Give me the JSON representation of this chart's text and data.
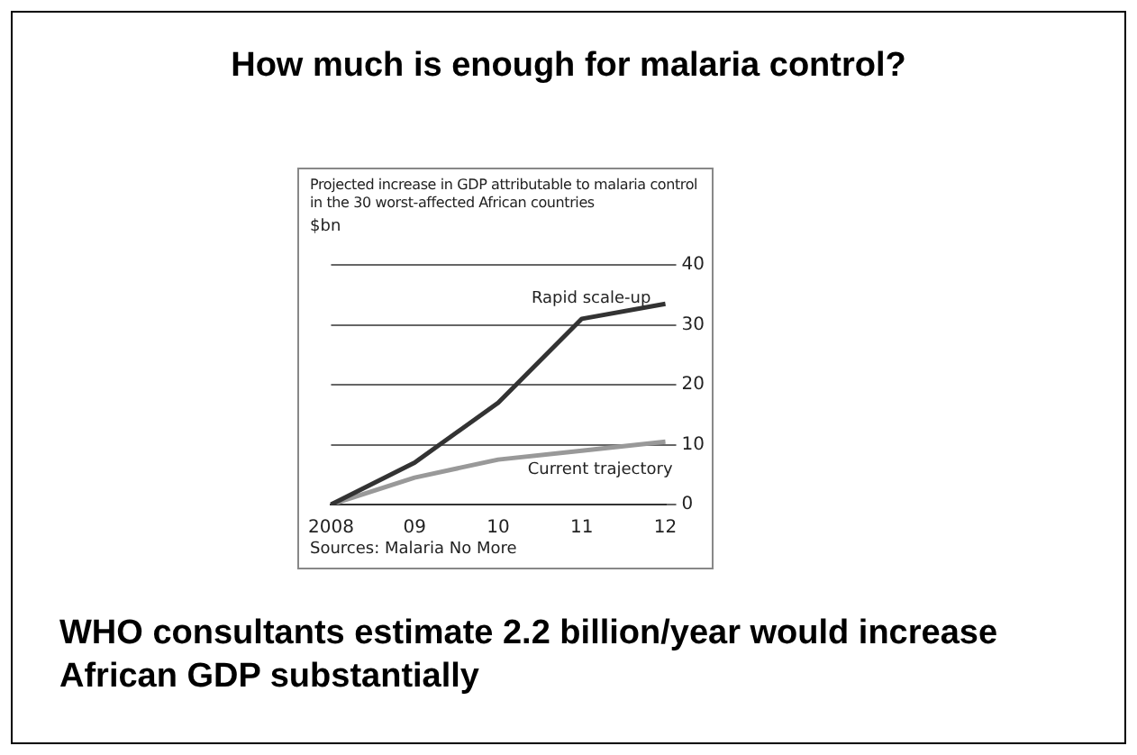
{
  "chart_data": {
    "type": "line",
    "title": "How much is enough for malaria control?",
    "subtitle": "Projected increase in GDP attributable to malaria control in the 30 worst-affected African countries",
    "ylabel": "$bn",
    "categories": [
      "2008",
      "09",
      "10",
      "11",
      "12"
    ],
    "series": [
      {
        "name": "Rapid scale-up",
        "color": "#333333",
        "values": [
          0,
          7,
          17,
          31,
          33.5
        ]
      },
      {
        "name": "Current trajectory",
        "color": "#999999",
        "values": [
          0,
          4.5,
          7.5,
          9,
          10.5
        ]
      }
    ],
    "ylim": [
      0,
      40
    ],
    "yticks": [
      0,
      10,
      20,
      30,
      40
    ],
    "grid": "y",
    "legend": false,
    "marker": "none",
    "line_style": "solid",
    "annotations": [
      "Sources: Malaria No More",
      "WHO consultants estimate 2.2 billion/year would increase African GDP substantially"
    ]
  }
}
